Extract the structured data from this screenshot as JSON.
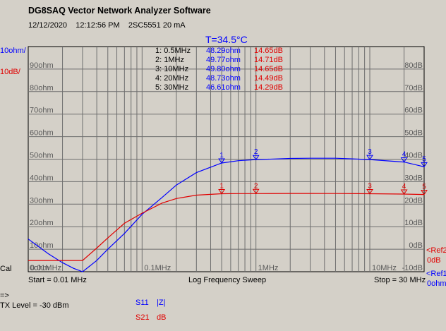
{
  "app": {
    "title": "DG8SAQ Vector Network Analyzer Software"
  },
  "info": {
    "date": "12/12/2020",
    "time": "12:12:56 PM",
    "device": "2SC5551 20 mA"
  },
  "temperature": "T=34.5°C",
  "left_scale": {
    "blue": "10ohm/",
    "red": "10dB/"
  },
  "cal_label": "Cal",
  "grid": {
    "left_labels": [
      "90ohm",
      "80ohm",
      "70ohm",
      "60ohm",
      "50ohm",
      "40ohm",
      "30ohm",
      "20ohm",
      "10ohm",
      "0ohm"
    ],
    "right_labels": [
      "80dB",
      "70dB",
      "60dB",
      "50dB",
      "40dB",
      "30dB",
      "20dB",
      "10dB",
      "0dB",
      "-10dB"
    ],
    "freq_labels": [
      "0.01MHz",
      "0.1MHz",
      "1MHz",
      "10MHz"
    ]
  },
  "refs": {
    "ref2": "<Ref2",
    "ref2_val": "0dB",
    "ref1": "<Ref1",
    "ref1_val": "0ohm"
  },
  "markers": [
    {
      "id": "1: 0.5MHz",
      "ohm": "48.29ohm",
      "db": "14.65dB"
    },
    {
      "id": "2: 1MHz",
      "ohm": "49.77ohm",
      "db": "14.71dB"
    },
    {
      "id": "3: 10MHz",
      "ohm": "49.80ohm",
      "db": "14.65dB"
    },
    {
      "id": "4: 20MHz",
      "ohm": "48.73ohm",
      "db": "14.49dB"
    },
    {
      "id": "5: 30MHz",
      "ohm": "46.61ohm",
      "db": "14.29dB"
    }
  ],
  "bottom": {
    "start": "Start = 0.01 MHz",
    "sweep": "Log Frequency Sweep",
    "stop": "Stop = 30 MHz"
  },
  "tx": {
    "arrow": "=>",
    "level": "TX Level = -30 dBm"
  },
  "legend": [
    {
      "trace": "S11",
      "unit": "|Z|",
      "color": "#0000ff"
    },
    {
      "trace": "S21",
      "unit": "dB",
      "color": "#e00000"
    }
  ],
  "chart_data": {
    "type": "line",
    "xlabel": "Log Frequency Sweep",
    "x_scale": "log",
    "xlim": [
      0.01,
      30
    ],
    "series": [
      {
        "name": "S11 |Z|",
        "unit": "ohm",
        "color": "#0000ff",
        "x": [
          0.01,
          0.015,
          0.02,
          0.025,
          0.03,
          0.04,
          0.05,
          0.07,
          0.1,
          0.15,
          0.2,
          0.3,
          0.5,
          0.7,
          1,
          2,
          3,
          5,
          10,
          20,
          30
        ],
        "y": [
          14.5,
          8,
          4,
          1.5,
          0,
          5,
          10,
          17,
          25.5,
          33,
          38.5,
          44,
          48.29,
          49.3,
          49.77,
          50.3,
          50.4,
          50.4,
          49.8,
          48.73,
          46.61
        ]
      },
      {
        "name": "S21 dB",
        "unit": "dB",
        "color": "#e00000",
        "x": [
          0.01,
          0.015,
          0.02,
          0.025,
          0.03,
          0.04,
          0.05,
          0.07,
          0.1,
          0.15,
          0.2,
          0.3,
          0.5,
          0.7,
          1,
          2,
          3,
          5,
          10,
          20,
          30
        ],
        "y": [
          -15,
          -15,
          -15,
          -15,
          -15,
          -9.5,
          -5,
          1.5,
          6,
          10.5,
          12.5,
          14,
          14.65,
          14.7,
          14.71,
          14.75,
          14.75,
          14.72,
          14.65,
          14.49,
          14.29
        ]
      }
    ],
    "left_axis": {
      "unit": "ohm",
      "range": [
        0,
        100
      ],
      "step": 10
    },
    "right_axis": {
      "unit": "dB",
      "range": [
        -20,
        80
      ],
      "step": 10
    },
    "marker_freqs_mhz": [
      0.5,
      1,
      10,
      20,
      30
    ],
    "grid": true
  }
}
